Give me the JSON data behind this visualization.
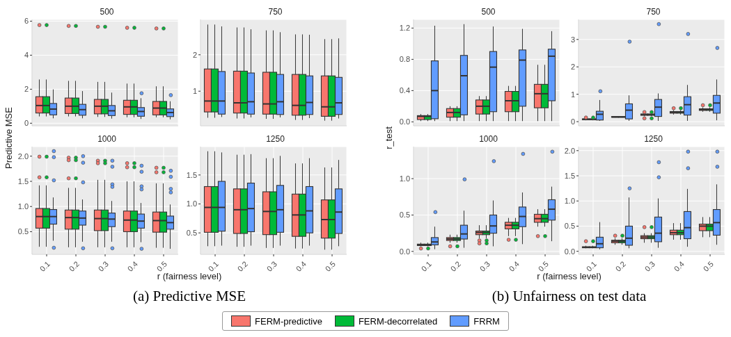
{
  "chart_data": [
    {
      "type": "box",
      "title": "500",
      "ylabel": "Predictive MSE",
      "annotations": [
        "(a) Predictive MSE"
      ],
      "categories": [
        "0.1",
        "0.2",
        "0.3",
        "0.4",
        "0.5"
      ],
      "ylim": [
        -0.15,
        6.1
      ],
      "yticks": [
        0,
        2,
        4,
        6
      ],
      "grid": true,
      "tick_labels": "y",
      "legend": "bottom",
      "series": [
        {
          "name": "FERM-predictive",
          "color": "#f8766d",
          "boxes": [
            {
              "low": 0.4,
              "q1": 0.6,
              "median": 1.04,
              "q3": 1.56,
              "high": 2.57,
              "outliers": [
                5.77
              ]
            },
            {
              "low": 0.4,
              "q1": 0.57,
              "median": 1.0,
              "q3": 1.48,
              "high": 2.49,
              "outliers": [
                5.72
              ]
            },
            {
              "low": 0.37,
              "q1": 0.55,
              "median": 1.0,
              "q3": 1.4,
              "high": 2.43,
              "outliers": [
                5.67
              ]
            },
            {
              "low": 0.35,
              "q1": 0.52,
              "median": 0.96,
              "q3": 1.35,
              "high": 2.33,
              "outliers": [
                5.61
              ]
            },
            {
              "low": 0.35,
              "q1": 0.49,
              "median": 0.89,
              "q3": 1.28,
              "high": 2.17,
              "outliers": [
                5.57
              ]
            }
          ]
        },
        {
          "name": "FERM-decorrelated",
          "color": "#00ba38",
          "boxes": [
            {
              "low": 0.4,
              "q1": 0.6,
              "median": 1.04,
              "q3": 1.56,
              "high": 2.57,
              "outliers": [
                5.77
              ]
            },
            {
              "low": 0.4,
              "q1": 0.57,
              "median": 1.0,
              "q3": 1.48,
              "high": 2.49,
              "outliers": [
                5.72
              ]
            },
            {
              "low": 0.37,
              "q1": 0.55,
              "median": 1.0,
              "q3": 1.4,
              "high": 2.43,
              "outliers": [
                5.67
              ]
            },
            {
              "low": 0.35,
              "q1": 0.52,
              "median": 0.96,
              "q3": 1.35,
              "high": 2.33,
              "outliers": [
                5.61
              ]
            },
            {
              "low": 0.35,
              "q1": 0.49,
              "median": 0.89,
              "q3": 1.28,
              "high": 2.17,
              "outliers": [
                5.57
              ]
            }
          ]
        },
        {
          "name": "FRRM",
          "color": "#619cff",
          "boxes": [
            {
              "low": 0.29,
              "q1": 0.49,
              "median": 0.83,
              "q3": 1.16,
              "high": 1.99
            },
            {
              "low": 0.29,
              "q1": 0.47,
              "median": 0.8,
              "q3": 1.11,
              "high": 1.89
            },
            {
              "low": 0.27,
              "q1": 0.45,
              "median": 0.73,
              "q3": 1.04,
              "high": 1.8
            },
            {
              "low": 0.25,
              "q1": 0.41,
              "median": 0.69,
              "q3": 0.92,
              "high": 1.47,
              "outliers": [
                1.76
              ]
            },
            {
              "low": 0.23,
              "q1": 0.39,
              "median": 0.63,
              "q3": 0.84,
              "high": 1.29,
              "outliers": [
                1.65
              ]
            }
          ]
        }
      ]
    },
    {
      "type": "box",
      "title": "750",
      "categories": [
        "0.1",
        "0.2",
        "0.3",
        "0.4",
        "0.5"
      ],
      "ylim": [
        0.05,
        2.97
      ],
      "yticks": [
        1,
        2
      ],
      "grid": true,
      "tick_labels": "y",
      "series": [
        {
          "name": "FERM-predictive",
          "color": "#f8766d",
          "boxes": [
            {
              "low": 0.27,
              "q1": 0.43,
              "median": 0.73,
              "q3": 1.61,
              "high": 2.83
            },
            {
              "low": 0.25,
              "q1": 0.4,
              "median": 0.68,
              "q3": 1.55,
              "high": 2.75
            },
            {
              "low": 0.24,
              "q1": 0.37,
              "median": 0.65,
              "q3": 1.52,
              "high": 2.67
            },
            {
              "low": 0.21,
              "q1": 0.34,
              "median": 0.61,
              "q3": 1.46,
              "high": 2.56
            },
            {
              "low": 0.19,
              "q1": 0.31,
              "median": 0.57,
              "q3": 1.42,
              "high": 2.43
            }
          ]
        },
        {
          "name": "FERM-decorrelated",
          "color": "#00ba38",
          "boxes": [
            {
              "low": 0.27,
              "q1": 0.43,
              "median": 0.73,
              "q3": 1.61,
              "high": 2.83
            },
            {
              "low": 0.25,
              "q1": 0.4,
              "median": 0.68,
              "q3": 1.55,
              "high": 2.75
            },
            {
              "low": 0.24,
              "q1": 0.37,
              "median": 0.65,
              "q3": 1.52,
              "high": 2.67
            },
            {
              "low": 0.21,
              "q1": 0.34,
              "median": 0.61,
              "q3": 1.46,
              "high": 2.56
            },
            {
              "low": 0.19,
              "q1": 0.31,
              "median": 0.57,
              "q3": 1.42,
              "high": 2.43
            }
          ]
        },
        {
          "name": "FRRM",
          "color": "#619cff",
          "boxes": [
            {
              "low": 0.29,
              "q1": 0.37,
              "median": 0.73,
              "q3": 1.54,
              "high": 2.78
            },
            {
              "low": 0.28,
              "q1": 0.37,
              "median": 0.71,
              "q3": 1.5,
              "high": 2.7
            },
            {
              "low": 0.28,
              "q1": 0.36,
              "median": 0.71,
              "q3": 1.46,
              "high": 2.62
            },
            {
              "low": 0.26,
              "q1": 0.36,
              "median": 0.69,
              "q3": 1.42,
              "high": 2.55
            },
            {
              "low": 0.25,
              "q1": 0.36,
              "median": 0.68,
              "q3": 1.38,
              "high": 2.45
            }
          ]
        }
      ]
    },
    {
      "type": "box",
      "title": "1000",
      "xlabel": "r (fairness level)",
      "categories": [
        "0.1",
        "0.2",
        "0.3",
        "0.4",
        "0.5"
      ],
      "ylim": [
        0.05,
        2.19
      ],
      "yticks": [
        {
          "value": 0.5,
          "label": "0.5"
        },
        {
          "value": 1,
          "label": "1.0"
        },
        {
          "value": 1.5,
          "label": "1.5"
        },
        {
          "value": 2,
          "label": "2.0"
        }
      ],
      "grid": true,
      "series": [
        {
          "name": "FERM-predictive",
          "color": "#f8766d",
          "boxes": [
            {
              "low": 0.2,
              "q1": 0.57,
              "median": 0.8,
              "q3": 0.96,
              "high": 1.42,
              "outliers": [
                1.99,
                1.58
              ]
            },
            {
              "low": 0.19,
              "q1": 0.55,
              "median": 0.78,
              "q3": 0.93,
              "high": 1.37,
              "outliers": [
                1.97,
                1.92,
                1.56
              ]
            },
            {
              "low": 0.19,
              "q1": 0.52,
              "median": 0.76,
              "q3": 0.93,
              "high": 1.53,
              "outliers": [
                1.91,
                1.86
              ]
            },
            {
              "low": 0.19,
              "q1": 0.5,
              "median": 0.73,
              "q3": 0.91,
              "high": 1.5,
              "outliers": [
                1.86,
                1.78
              ]
            },
            {
              "low": 0.18,
              "q1": 0.49,
              "median": 0.72,
              "q3": 0.89,
              "high": 1.46,
              "outliers": [
                1.77,
                1.68
              ]
            }
          ]
        },
        {
          "name": "FERM-decorrelated",
          "color": "#00ba38",
          "boxes": [
            {
              "low": 0.2,
              "q1": 0.57,
              "median": 0.8,
              "q3": 0.96,
              "high": 1.42,
              "outliers": [
                1.99,
                1.58
              ]
            },
            {
              "low": 0.19,
              "q1": 0.55,
              "median": 0.78,
              "q3": 0.93,
              "high": 1.37,
              "outliers": [
                1.97,
                1.92,
                1.56
              ]
            },
            {
              "low": 0.19,
              "q1": 0.52,
              "median": 0.76,
              "q3": 0.93,
              "high": 1.53,
              "outliers": [
                1.91,
                1.86
              ]
            },
            {
              "low": 0.19,
              "q1": 0.5,
              "median": 0.73,
              "q3": 0.91,
              "high": 1.5,
              "outliers": [
                1.86,
                1.78
              ]
            },
            {
              "low": 0.18,
              "q1": 0.49,
              "median": 0.72,
              "q3": 0.89,
              "high": 1.46,
              "outliers": [
                1.77,
                1.68
              ]
            }
          ]
        },
        {
          "name": "FRRM",
          "color": "#619cff",
          "boxes": [
            {
              "low": 0.32,
              "q1": 0.65,
              "median": 0.8,
              "q3": 0.94,
              "high": 1.18,
              "outliers": [
                2.1,
                1.98,
                1.52,
                0.18
              ]
            },
            {
              "low": 0.3,
              "q1": 0.63,
              "median": 0.77,
              "q3": 0.91,
              "high": 1.14,
              "outliers": [
                2.0,
                1.87,
                1.48,
                0.17
              ]
            },
            {
              "low": 0.3,
              "q1": 0.6,
              "median": 0.75,
              "q3": 0.87,
              "high": 1.11,
              "outliers": [
                1.91,
                1.79,
                1.44,
                1.39,
                0.17
              ]
            },
            {
              "low": 0.29,
              "q1": 0.57,
              "median": 0.71,
              "q3": 0.85,
              "high": 1.07,
              "outliers": [
                1.81,
                1.69,
                1.4,
                1.34,
                0.16
              ]
            },
            {
              "low": 0.16,
              "q1": 0.55,
              "median": 0.68,
              "q3": 0.81,
              "high": 1.04,
              "outliers": [
                1.71,
                1.59,
                1.35,
                1.28
              ]
            }
          ]
        }
      ]
    },
    {
      "type": "box",
      "title": "1250",
      "categories": [
        "0.1",
        "0.2",
        "0.3",
        "0.4",
        "0.5"
      ],
      "ylim": [
        0.13,
        1.99
      ],
      "yticks": [
        {
          "value": 0.5,
          "label": "0.5"
        },
        {
          "value": 1,
          "label": "1.0"
        },
        {
          "value": 1.5,
          "label": "1.5"
        }
      ],
      "grid": true,
      "series": [
        {
          "name": "FERM-predictive",
          "color": "#f8766d",
          "boxes": [
            {
              "low": 0.27,
              "q1": 0.51,
              "median": 0.94,
              "q3": 1.3,
              "high": 1.91
            },
            {
              "low": 0.26,
              "q1": 0.49,
              "median": 0.9,
              "q3": 1.26,
              "high": 1.85
            },
            {
              "low": 0.24,
              "q1": 0.47,
              "median": 0.87,
              "q3": 1.21,
              "high": 1.79
            },
            {
              "low": 0.23,
              "q1": 0.44,
              "median": 0.81,
              "q3": 1.17,
              "high": 1.7
            },
            {
              "low": 0.21,
              "q1": 0.41,
              "median": 0.73,
              "q3": 1.07,
              "high": 1.63
            }
          ]
        },
        {
          "name": "FERM-decorrelated",
          "color": "#00ba38",
          "boxes": [
            {
              "low": 0.27,
              "q1": 0.51,
              "median": 0.94,
              "q3": 1.3,
              "high": 1.91
            },
            {
              "low": 0.26,
              "q1": 0.49,
              "median": 0.9,
              "q3": 1.26,
              "high": 1.85
            },
            {
              "low": 0.24,
              "q1": 0.47,
              "median": 0.87,
              "q3": 1.21,
              "high": 1.79
            },
            {
              "low": 0.23,
              "q1": 0.44,
              "median": 0.81,
              "q3": 1.17,
              "high": 1.7
            },
            {
              "low": 0.21,
              "q1": 0.41,
              "median": 0.73,
              "q3": 1.07,
              "high": 1.63
            }
          ]
        },
        {
          "name": "FRRM",
          "color": "#619cff",
          "boxes": [
            {
              "low": 0.28,
              "q1": 0.53,
              "median": 0.94,
              "q3": 1.39,
              "high": 1.89
            },
            {
              "low": 0.28,
              "q1": 0.52,
              "median": 0.92,
              "q3": 1.36,
              "high": 1.86
            },
            {
              "low": 0.28,
              "q1": 0.51,
              "median": 0.9,
              "q3": 1.32,
              "high": 1.83
            },
            {
              "low": 0.28,
              "q1": 0.5,
              "median": 0.88,
              "q3": 1.3,
              "high": 1.79
            },
            {
              "low": 0.27,
              "q1": 0.49,
              "median": 0.86,
              "q3": 1.26,
              "high": 1.76
            }
          ]
        }
      ]
    },
    {
      "type": "box",
      "title": "500",
      "ylabel": "r_test",
      "annotations": [
        "(b) Unfairness on test data"
      ],
      "categories": [
        "0.1",
        "0.2",
        "0.3",
        "0.4",
        "0.5"
      ],
      "ylim": [
        -0.05,
        1.31
      ],
      "yticks": [
        {
          "value": 0,
          "label": "0.0"
        },
        {
          "value": 0.4,
          "label": "0.4"
        },
        {
          "value": 0.8,
          "label": "0.8"
        },
        {
          "value": 1.2,
          "label": "1.2"
        }
      ],
      "grid": true,
      "tick_labels": "y",
      "series": [
        {
          "name": "FERM-predictive",
          "color": "#f8766d",
          "boxes": [
            {
              "low": 0.01,
              "q1": 0.03,
              "median": 0.07,
              "q3": 0.08,
              "high": 0.1
            },
            {
              "low": 0.01,
              "q1": 0.06,
              "median": 0.12,
              "q3": 0.17,
              "high": 0.2
            },
            {
              "low": 0.01,
              "q1": 0.1,
              "median": 0.2,
              "q3": 0.28,
              "high": 0.33
            },
            {
              "low": 0.01,
              "q1": 0.13,
              "median": 0.27,
              "q3": 0.39,
              "high": 0.46
            },
            {
              "low": 0.01,
              "q1": 0.18,
              "median": 0.36,
              "q3": 0.48,
              "high": 0.73
            }
          ]
        },
        {
          "name": "FERM-decorrelated",
          "color": "#00ba38",
          "boxes": [
            {
              "low": 0.01,
              "q1": 0.03,
              "median": 0.07,
              "q3": 0.08,
              "high": 0.1
            },
            {
              "low": 0.01,
              "q1": 0.06,
              "median": 0.12,
              "q3": 0.17,
              "high": 0.2
            },
            {
              "low": 0.01,
              "q1": 0.1,
              "median": 0.2,
              "q3": 0.28,
              "high": 0.33
            },
            {
              "low": 0.01,
              "q1": 0.13,
              "median": 0.27,
              "q3": 0.39,
              "high": 0.46
            },
            {
              "low": 0.01,
              "q1": 0.18,
              "median": 0.36,
              "q3": 0.48,
              "high": 0.73
            }
          ]
        },
        {
          "name": "FRRM",
          "color": "#619cff",
          "boxes": [
            {
              "low": 0.01,
              "q1": 0.04,
              "median": 0.4,
              "q3": 0.78,
              "high": 1.23
            },
            {
              "low": 0.01,
              "q1": 0.09,
              "median": 0.59,
              "q3": 0.85,
              "high": 1.25
            },
            {
              "low": 0.01,
              "q1": 0.13,
              "median": 0.7,
              "q3": 0.9,
              "high": 1.22
            },
            {
              "low": 0.01,
              "q1": 0.2,
              "median": 0.79,
              "q3": 0.92,
              "high": 1.19
            },
            {
              "low": 0.01,
              "q1": 0.27,
              "median": 0.84,
              "q3": 0.93,
              "high": 1.16
            }
          ]
        }
      ]
    },
    {
      "type": "box",
      "title": "750",
      "categories": [
        "0.1",
        "0.2",
        "0.3",
        "0.4",
        "0.5"
      ],
      "ylim": [
        -0.15,
        3.73
      ],
      "yticks": [
        0,
        1,
        2,
        3
      ],
      "grid": true,
      "tick_labels": "y",
      "series": [
        {
          "name": "FERM-predictive",
          "color": "#f8766d",
          "boxes": [
            {
              "low": 0.05,
              "q1": 0.07,
              "median": 0.09,
              "q3": 0.1,
              "high": 0.12,
              "outliers": [
                0.15
              ]
            },
            {
              "low": 0.15,
              "q1": 0.16,
              "median": 0.17,
              "q3": 0.19,
              "high": 0.2
            },
            {
              "low": 0.2,
              "q1": 0.23,
              "median": 0.26,
              "q3": 0.28,
              "high": 0.32,
              "outliers": [
                0.35,
                0.12
              ]
            },
            {
              "low": 0.26,
              "q1": 0.31,
              "median": 0.34,
              "q3": 0.37,
              "high": 0.42,
              "outliers": [
                0.49
              ]
            },
            {
              "low": 0.36,
              "q1": 0.41,
              "median": 0.44,
              "q3": 0.47,
              "high": 0.52,
              "outliers": [
                0.6
              ]
            }
          ]
        },
        {
          "name": "FERM-decorrelated",
          "color": "#00ba38",
          "boxes": [
            {
              "low": 0.05,
              "q1": 0.07,
              "median": 0.09,
              "q3": 0.1,
              "high": 0.12,
              "outliers": [
                0.15
              ]
            },
            {
              "low": 0.15,
              "q1": 0.16,
              "median": 0.17,
              "q3": 0.19,
              "high": 0.2
            },
            {
              "low": 0.2,
              "q1": 0.23,
              "median": 0.26,
              "q3": 0.28,
              "high": 0.32,
              "outliers": [
                0.35,
                0.12
              ]
            },
            {
              "low": 0.26,
              "q1": 0.31,
              "median": 0.34,
              "q3": 0.37,
              "high": 0.42,
              "outliers": [
                0.49
              ]
            },
            {
              "low": 0.36,
              "q1": 0.41,
              "median": 0.44,
              "q3": 0.47,
              "high": 0.52,
              "outliers": [
                0.6
              ]
            }
          ]
        },
        {
          "name": "FRRM",
          "color": "#619cff",
          "boxes": [
            {
              "low": 0.03,
              "q1": 0.06,
              "median": 0.27,
              "q3": 0.38,
              "high": 0.79,
              "outliers": [
                1.11
              ]
            },
            {
              "low": 0.03,
              "q1": 0.1,
              "median": 0.42,
              "q3": 0.65,
              "high": 0.96,
              "outliers": [
                2.92
              ]
            },
            {
              "low": 0.03,
              "q1": 0.19,
              "median": 0.53,
              "q3": 0.81,
              "high": 1.03,
              "outliers": [
                3.56
              ]
            },
            {
              "low": 0.03,
              "q1": 0.24,
              "median": 0.62,
              "q3": 0.91,
              "high": 1.34,
              "outliers": [
                3.2
              ]
            },
            {
              "low": 0.05,
              "q1": 0.31,
              "median": 0.68,
              "q3": 0.96,
              "high": 1.54,
              "outliers": [
                2.69
              ]
            }
          ]
        }
      ]
    },
    {
      "type": "box",
      "title": "1000",
      "xlabel": "r (fairness level)",
      "categories": [
        "0.1",
        "0.2",
        "0.3",
        "0.4",
        "0.5"
      ],
      "ylim": [
        -0.04,
        1.44
      ],
      "yticks": [
        {
          "value": 0,
          "label": "0.0"
        },
        {
          "value": 0.5,
          "label": "0.5"
        },
        {
          "value": 1,
          "label": "1.0"
        }
      ],
      "grid": true,
      "series": [
        {
          "name": "FERM-predictive",
          "color": "#f8766d",
          "boxes": [
            {
              "low": 0.07,
              "q1": 0.08,
              "median": 0.09,
              "q3": 0.1,
              "high": 0.12,
              "outliers": [
                0.04
              ]
            },
            {
              "low": 0.12,
              "q1": 0.15,
              "median": 0.17,
              "q3": 0.19,
              "high": 0.23,
              "outliers": [
                0.07
              ]
            },
            {
              "low": 0.18,
              "q1": 0.23,
              "median": 0.26,
              "q3": 0.28,
              "high": 0.36,
              "outliers": [
                0.15,
                0.11
              ]
            },
            {
              "low": 0.21,
              "q1": 0.31,
              "median": 0.36,
              "q3": 0.4,
              "high": 0.46,
              "outliers": [
                0.16
              ]
            },
            {
              "low": 0.34,
              "q1": 0.4,
              "median": 0.45,
              "q3": 0.51,
              "high": 0.58,
              "outliers": [
                0.21
              ]
            }
          ]
        },
        {
          "name": "FERM-decorrelated",
          "color": "#00ba38",
          "boxes": [
            {
              "low": 0.07,
              "q1": 0.08,
              "median": 0.09,
              "q3": 0.1,
              "high": 0.12,
              "outliers": [
                0.04
              ]
            },
            {
              "low": 0.12,
              "q1": 0.15,
              "median": 0.17,
              "q3": 0.19,
              "high": 0.23,
              "outliers": [
                0.07
              ]
            },
            {
              "low": 0.18,
              "q1": 0.23,
              "median": 0.26,
              "q3": 0.28,
              "high": 0.36,
              "outliers": [
                0.15,
                0.11
              ]
            },
            {
              "low": 0.21,
              "q1": 0.31,
              "median": 0.36,
              "q3": 0.4,
              "high": 0.46,
              "outliers": [
                0.16
              ]
            },
            {
              "low": 0.34,
              "q1": 0.4,
              "median": 0.45,
              "q3": 0.51,
              "high": 0.58,
              "outliers": [
                0.21
              ]
            }
          ]
        },
        {
          "name": "FRRM",
          "color": "#619cff",
          "boxes": [
            {
              "low": 0.03,
              "q1": 0.09,
              "median": 0.13,
              "q3": 0.19,
              "high": 0.34,
              "outliers": [
                0.54
              ]
            },
            {
              "low": 0.05,
              "q1": 0.17,
              "median": 0.24,
              "q3": 0.36,
              "high": 0.56,
              "outliers": [
                0.99
              ]
            },
            {
              "low": 0.07,
              "q1": 0.25,
              "median": 0.35,
              "q3": 0.5,
              "high": 0.7,
              "outliers": [
                1.24
              ]
            },
            {
              "low": 0.1,
              "q1": 0.34,
              "median": 0.48,
              "q3": 0.61,
              "high": 0.81,
              "outliers": [
                1.34
              ]
            },
            {
              "low": 0.14,
              "q1": 0.43,
              "median": 0.58,
              "q3": 0.71,
              "high": 0.89,
              "outliers": [
                1.37
              ]
            }
          ]
        }
      ]
    },
    {
      "type": "box",
      "title": "1250",
      "categories": [
        "0.1",
        "0.2",
        "0.3",
        "0.4",
        "0.5"
      ],
      "ylim": [
        -0.06,
        2.08
      ],
      "yticks": [
        {
          "value": 0,
          "label": "0.0"
        },
        {
          "value": 0.5,
          "label": "0.5"
        },
        {
          "value": 1,
          "label": "1.0"
        },
        {
          "value": 1.5,
          "label": "1.5"
        },
        {
          "value": 2,
          "label": "2.0"
        }
      ],
      "grid": true,
      "series": [
        {
          "name": "FERM-predictive",
          "color": "#f8766d",
          "boxes": [
            {
              "low": 0.06,
              "q1": 0.07,
              "median": 0.08,
              "q3": 0.09,
              "high": 0.11,
              "outliers": [
                0.2
              ]
            },
            {
              "low": 0.13,
              "q1": 0.17,
              "median": 0.2,
              "q3": 0.22,
              "high": 0.26,
              "outliers": [
                0.31
              ]
            },
            {
              "low": 0.17,
              "q1": 0.25,
              "median": 0.28,
              "q3": 0.31,
              "high": 0.36,
              "outliers": [
                0.48
              ]
            },
            {
              "low": 0.23,
              "q1": 0.33,
              "median": 0.37,
              "q3": 0.42,
              "high": 0.56
            },
            {
              "low": 0.28,
              "q1": 0.41,
              "median": 0.5,
              "q3": 0.54,
              "high": 0.68
            }
          ]
        },
        {
          "name": "FERM-decorrelated",
          "color": "#00ba38",
          "boxes": [
            {
              "low": 0.06,
              "q1": 0.07,
              "median": 0.08,
              "q3": 0.09,
              "high": 0.11,
              "outliers": [
                0.2
              ]
            },
            {
              "low": 0.13,
              "q1": 0.17,
              "median": 0.2,
              "q3": 0.22,
              "high": 0.26,
              "outliers": [
                0.31
              ]
            },
            {
              "low": 0.17,
              "q1": 0.25,
              "median": 0.28,
              "q3": 0.31,
              "high": 0.36,
              "outliers": [
                0.48
              ]
            },
            {
              "low": 0.23,
              "q1": 0.33,
              "median": 0.37,
              "q3": 0.42,
              "high": 0.56
            },
            {
              "low": 0.28,
              "q1": 0.41,
              "median": 0.5,
              "q3": 0.54,
              "high": 0.68
            }
          ]
        },
        {
          "name": "FRRM",
          "color": "#619cff",
          "boxes": [
            {
              "low": 0.04,
              "q1": 0.07,
              "median": 0.15,
              "q3": 0.28,
              "high": 0.58
            },
            {
              "low": 0.06,
              "q1": 0.12,
              "median": 0.26,
              "q3": 0.5,
              "high": 1.07,
              "outliers": [
                1.25
              ]
            },
            {
              "low": 0.07,
              "q1": 0.19,
              "median": 0.36,
              "q3": 0.68,
              "high": 1.05,
              "outliers": [
                1.47,
                1.77
              ]
            },
            {
              "low": 0.09,
              "q1": 0.25,
              "median": 0.47,
              "q3": 0.79,
              "high": 1.24,
              "outliers": [
                1.65,
                1.98
              ]
            },
            {
              "low": 0.13,
              "q1": 0.32,
              "median": 0.57,
              "q3": 0.83,
              "high": 1.33,
              "outliers": [
                1.68,
                1.98
              ]
            }
          ]
        }
      ]
    }
  ]
}
